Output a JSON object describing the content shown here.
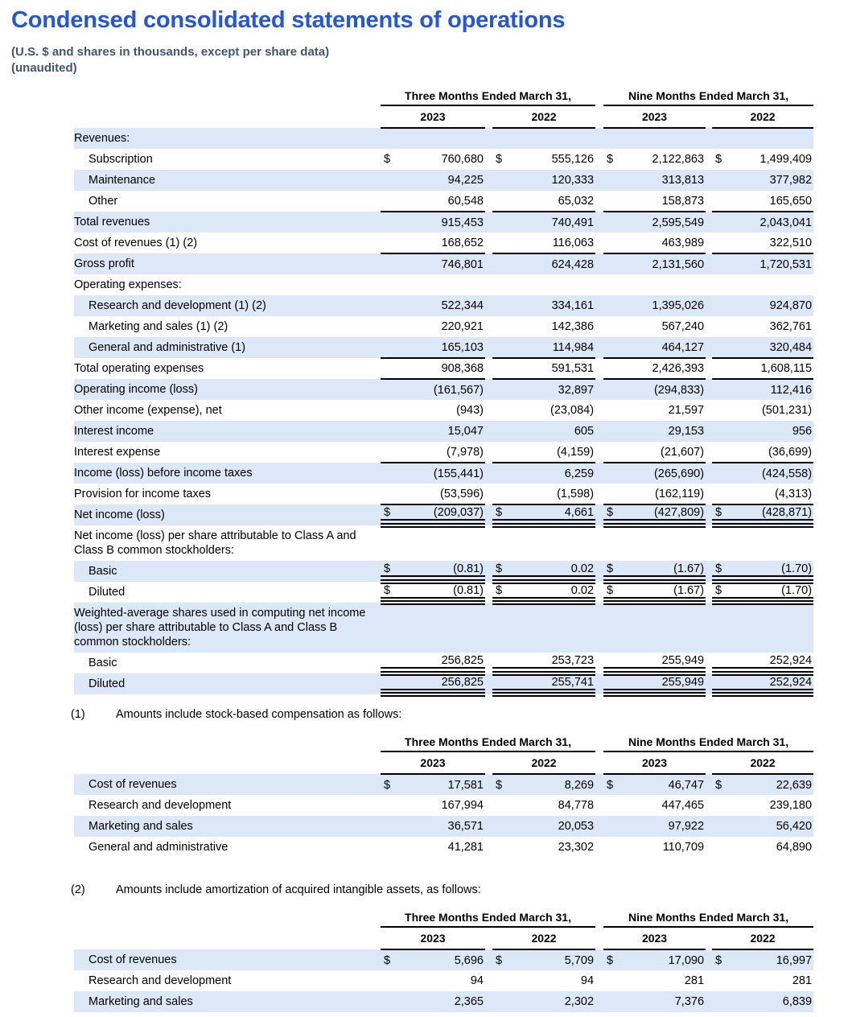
{
  "header": {
    "title": "Condensed consolidated statements of operations",
    "subtitle_line1": "(U.S. $ and shares in thousands, except per share data)",
    "subtitle_line2": "(unaudited)"
  },
  "colors": {
    "row_shade": "#DCE7F8",
    "title": "#2456D6",
    "subtitle": "#44546F",
    "rule": "#000000"
  },
  "footnotes": [
    {
      "num": "(1)",
      "text": "Amounts include stock-based compensation as follows:"
    },
    {
      "num": "(2)",
      "text": "Amounts include amortization of acquired intangible assets, as follows:"
    }
  ],
  "tables": {
    "main": {
      "group_headers": [
        "Three Months Ended March 31,",
        "Nine Months Ended March 31,"
      ],
      "year_headers": [
        "2023",
        "2022",
        "2023",
        "2022"
      ],
      "rows": [
        {
          "label": "Revenues:",
          "indent": 0,
          "shaded": true,
          "dollar": false,
          "rule": "none",
          "values": [
            "",
            "",
            "",
            ""
          ]
        },
        {
          "label": "Subscription",
          "indent": 1,
          "shaded": false,
          "dollar": true,
          "rule": "none",
          "values": [
            "760,680",
            "555,126",
            "2,122,863",
            "1,499,409"
          ]
        },
        {
          "label": "Maintenance",
          "indent": 1,
          "shaded": true,
          "dollar": false,
          "rule": "none",
          "values": [
            "94,225",
            "120,333",
            "313,813",
            "377,982"
          ]
        },
        {
          "label": "Other",
          "indent": 1,
          "shaded": false,
          "dollar": false,
          "rule": "single",
          "values": [
            "60,548",
            "65,032",
            "158,873",
            "165,650"
          ]
        },
        {
          "label": "Total revenues",
          "indent": 0,
          "shaded": true,
          "dollar": false,
          "rule": "none",
          "values": [
            "915,453",
            "740,491",
            "2,595,549",
            "2,043,041"
          ]
        },
        {
          "label": "Cost of revenues (1) (2)",
          "indent": 0,
          "shaded": false,
          "dollar": false,
          "rule": "single",
          "values": [
            "168,652",
            "116,063",
            "463,989",
            "322,510"
          ]
        },
        {
          "label": "Gross profit",
          "indent": 0,
          "shaded": true,
          "dollar": false,
          "rule": "none",
          "values": [
            "746,801",
            "624,428",
            "2,131,560",
            "1,720,531"
          ]
        },
        {
          "label": "Operating expenses:",
          "indent": 0,
          "shaded": false,
          "dollar": false,
          "rule": "none",
          "values": [
            "",
            "",
            "",
            ""
          ]
        },
        {
          "label": "Research and development (1) (2)",
          "indent": 1,
          "shaded": true,
          "dollar": false,
          "rule": "none",
          "values": [
            "522,344",
            "334,161",
            "1,395,026",
            "924,870"
          ]
        },
        {
          "label": "Marketing and sales (1) (2)",
          "indent": 1,
          "shaded": false,
          "dollar": false,
          "rule": "none",
          "values": [
            "220,921",
            "142,386",
            "567,240",
            "362,761"
          ]
        },
        {
          "label": "General and administrative (1)",
          "indent": 1,
          "shaded": true,
          "dollar": false,
          "rule": "single",
          "values": [
            "165,103",
            "114,984",
            "464,127",
            "320,484"
          ]
        },
        {
          "label": "Total operating expenses",
          "indent": 0,
          "shaded": false,
          "dollar": false,
          "rule": "single",
          "values": [
            "908,368",
            "591,531",
            "2,426,393",
            "1,608,115"
          ]
        },
        {
          "label": "Operating income (loss)",
          "indent": 0,
          "shaded": true,
          "dollar": false,
          "rule": "none",
          "values": [
            "(161,567)",
            "32,897",
            "(294,833)",
            "112,416"
          ]
        },
        {
          "label": "Other income (expense), net",
          "indent": 0,
          "shaded": false,
          "dollar": false,
          "rule": "none",
          "values": [
            "(943)",
            "(23,084)",
            "21,597",
            "(501,231)"
          ]
        },
        {
          "label": "Interest income",
          "indent": 0,
          "shaded": true,
          "dollar": false,
          "rule": "none",
          "values": [
            "15,047",
            "605",
            "29,153",
            "956"
          ]
        },
        {
          "label": "Interest expense",
          "indent": 0,
          "shaded": false,
          "dollar": false,
          "rule": "single",
          "values": [
            "(7,978)",
            "(4,159)",
            "(21,607)",
            "(36,699)"
          ]
        },
        {
          "label": "Income (loss) before income taxes",
          "indent": 0,
          "shaded": true,
          "dollar": false,
          "rule": "none",
          "values": [
            "(155,441)",
            "6,259",
            "(265,690)",
            "(424,558)"
          ]
        },
        {
          "label": "Provision for income taxes",
          "indent": 0,
          "shaded": false,
          "dollar": false,
          "rule": "single",
          "values": [
            "(53,596)",
            "(1,598)",
            "(162,119)",
            "(4,313)"
          ]
        },
        {
          "label": "Net income (loss)",
          "indent": 0,
          "shaded": true,
          "dollar": true,
          "rule": "double",
          "values": [
            "(209,037)",
            "4,661",
            "(427,809)",
            "(428,871)"
          ]
        },
        {
          "label": "Net income (loss) per share attributable to Class A and Class B common stockholders:",
          "indent": 0,
          "shaded": false,
          "dollar": false,
          "rule": "none",
          "wrap": true,
          "values": [
            "",
            "",
            "",
            ""
          ]
        },
        {
          "label": "Basic",
          "indent": 1,
          "shaded": true,
          "dollar": true,
          "rule": "double",
          "values": [
            "(0.81)",
            "0.02",
            "(1.67)",
            "(1.70)"
          ]
        },
        {
          "label": "Diluted",
          "indent": 1,
          "shaded": false,
          "dollar": true,
          "rule": "double",
          "values": [
            "(0.81)",
            "0.02",
            "(1.67)",
            "(1.70)"
          ]
        },
        {
          "label": "Weighted-average shares used in computing net income (loss) per share attributable to Class A and Class B common stockholders:",
          "indent": 0,
          "shaded": true,
          "dollar": false,
          "rule": "none",
          "wrap": true,
          "values": [
            "",
            "",
            "",
            ""
          ]
        },
        {
          "label": "Basic",
          "indent": 1,
          "shaded": false,
          "dollar": false,
          "rule": "double",
          "values": [
            "256,825",
            "253,723",
            "255,949",
            "252,924"
          ]
        },
        {
          "label": "Diluted",
          "indent": 1,
          "shaded": true,
          "dollar": false,
          "rule": "double",
          "values": [
            "256,825",
            "255,741",
            "255,949",
            "252,924"
          ]
        }
      ]
    },
    "stock_comp": {
      "group_headers": [
        "Three Months Ended March 31,",
        "Nine Months Ended March 31,"
      ],
      "year_headers": [
        "2023",
        "2022",
        "2023",
        "2022"
      ],
      "rows": [
        {
          "label": "Cost of revenues",
          "indent": 1,
          "shaded": true,
          "dollar": true,
          "rule": "none",
          "values": [
            "17,581",
            "8,269",
            "46,747",
            "22,639"
          ]
        },
        {
          "label": "Research and development",
          "indent": 1,
          "shaded": false,
          "dollar": false,
          "rule": "none",
          "values": [
            "167,994",
            "84,778",
            "447,465",
            "239,180"
          ]
        },
        {
          "label": "Marketing and sales",
          "indent": 1,
          "shaded": true,
          "dollar": false,
          "rule": "none",
          "values": [
            "36,571",
            "20,053",
            "97,922",
            "56,420"
          ]
        },
        {
          "label": "General and administrative",
          "indent": 1,
          "shaded": false,
          "dollar": false,
          "rule": "none",
          "values": [
            "41,281",
            "23,302",
            "110,709",
            "64,890"
          ]
        }
      ]
    },
    "amortization": {
      "group_headers": [
        "Three Months Ended March 31,",
        "Nine Months Ended March 31,"
      ],
      "year_headers": [
        "2023",
        "2022",
        "2023",
        "2022"
      ],
      "rows": [
        {
          "label": "Cost of revenues",
          "indent": 1,
          "shaded": true,
          "dollar": true,
          "rule": "none",
          "values": [
            "5,696",
            "5,709",
            "17,090",
            "16,997"
          ]
        },
        {
          "label": "Research and development",
          "indent": 1,
          "shaded": false,
          "dollar": false,
          "rule": "none",
          "values": [
            "94",
            "94",
            "281",
            "281"
          ]
        },
        {
          "label": "Marketing and sales",
          "indent": 1,
          "shaded": true,
          "dollar": false,
          "rule": "none",
          "values": [
            "2,365",
            "2,302",
            "7,376",
            "6,839"
          ]
        }
      ]
    }
  }
}
